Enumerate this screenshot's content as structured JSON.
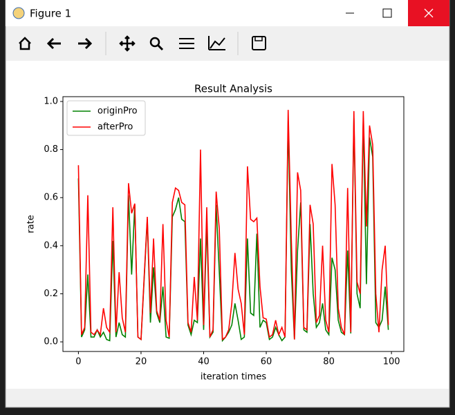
{
  "window": {
    "title": "Figure 1"
  },
  "chart_data": {
    "type": "line",
    "title": "Result Analysis",
    "x_label": "iteration times",
    "y_label": "rate",
    "x": [
      0,
      1,
      2,
      3,
      4,
      5,
      6,
      7,
      8,
      9,
      10,
      11,
      12,
      13,
      14,
      15,
      16,
      17,
      18,
      19,
      20,
      21,
      22,
      23,
      24,
      25,
      26,
      27,
      28,
      29,
      30,
      31,
      32,
      33,
      34,
      35,
      36,
      37,
      38,
      39,
      40,
      41,
      42,
      43,
      44,
      45,
      46,
      47,
      48,
      49,
      50,
      51,
      52,
      53,
      54,
      55,
      56,
      57,
      58,
      59,
      60,
      61,
      62,
      63,
      64,
      65,
      66,
      67,
      68,
      69,
      70,
      71,
      72,
      73,
      74,
      75,
      76,
      77,
      78,
      79,
      80,
      81,
      82,
      83,
      84,
      85,
      86,
      87,
      88,
      89,
      90,
      91,
      92,
      93,
      94,
      95,
      96,
      97,
      98,
      99
    ],
    "series": [
      {
        "name": "originPro",
        "color": "#008000",
        "values": [
          0.68,
          0.02,
          0.05,
          0.28,
          0.02,
          0.02,
          0.05,
          0.02,
          0.04,
          0.01,
          0.005,
          0.42,
          0.02,
          0.08,
          0.03,
          0.02,
          0.61,
          0.28,
          0.57,
          0.02,
          0.01,
          0.26,
          0.51,
          0.08,
          0.31,
          0.12,
          0.08,
          0.23,
          0.02,
          0.015,
          0.52,
          0.55,
          0.6,
          0.51,
          0.5,
          0.07,
          0.03,
          0.09,
          0.08,
          0.43,
          0.05,
          0.49,
          0.02,
          0.04,
          0.57,
          0.29,
          0.005,
          0.02,
          0.04,
          0.07,
          0.16,
          0.09,
          0.01,
          0.02,
          0.43,
          0.12,
          0.11,
          0.45,
          0.06,
          0.09,
          0.08,
          0.01,
          0.02,
          0.06,
          0.03,
          0.005,
          0.02,
          0.92,
          0.3,
          0.01,
          0.38,
          0.58,
          0.05,
          0.04,
          0.49,
          0.2,
          0.06,
          0.08,
          0.16,
          0.05,
          0.03,
          0.35,
          0.3,
          0.09,
          0.04,
          0.03,
          0.38,
          0.035,
          0.93,
          0.2,
          0.14,
          0.93,
          0.24,
          0.85,
          0.77,
          0.08,
          0.06,
          0.09,
          0.23,
          0.05
        ]
      },
      {
        "name": "afterPro",
        "color": "#ff0000",
        "values": [
          0.735,
          0.03,
          0.06,
          0.61,
          0.04,
          0.03,
          0.05,
          0.03,
          0.14,
          0.06,
          0.04,
          0.56,
          0.04,
          0.29,
          0.1,
          0.04,
          0.66,
          0.535,
          0.575,
          0.02,
          0.01,
          0.27,
          0.52,
          0.12,
          0.43,
          0.13,
          0.09,
          0.49,
          0.09,
          0.02,
          0.58,
          0.64,
          0.63,
          0.58,
          0.57,
          0.08,
          0.04,
          0.27,
          0.09,
          0.8,
          0.07,
          0.56,
          0.02,
          0.05,
          0.625,
          0.47,
          0.01,
          0.02,
          0.05,
          0.16,
          0.37,
          0.22,
          0.16,
          0.03,
          0.73,
          0.51,
          0.5,
          0.515,
          0.23,
          0.1,
          0.095,
          0.02,
          0.03,
          0.09,
          0.03,
          0.06,
          0.02,
          0.965,
          0.43,
          0.01,
          0.705,
          0.63,
          0.06,
          0.05,
          0.57,
          0.49,
          0.08,
          0.11,
          0.4,
          0.09,
          0.04,
          0.74,
          0.57,
          0.14,
          0.06,
          0.03,
          0.64,
          0.04,
          0.96,
          0.25,
          0.2,
          0.96,
          0.48,
          0.9,
          0.82,
          0.2,
          0.04,
          0.3,
          0.4,
          0.07
        ]
      }
    ],
    "xlim": [
      -4.95,
      103.95
    ],
    "xticks": [
      0,
      20,
      40,
      60,
      80,
      100
    ],
    "ylim": [
      -0.04,
      1.02
    ],
    "yticks": [
      {
        "value": 0,
        "label": "0.0"
      },
      0.2,
      0.4,
      0.6,
      0.8,
      {
        "value": 1,
        "label": "1.0"
      }
    ],
    "legend": "upper left"
  }
}
